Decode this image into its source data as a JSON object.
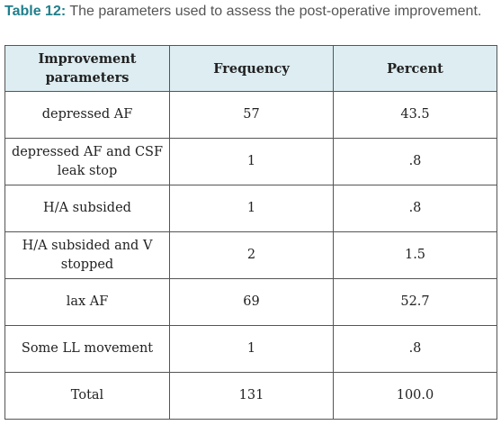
{
  "caption": {
    "label": "Table 12:",
    "text": " The parameters used to assess the post-operative improvement."
  },
  "table": {
    "headers": [
      "Improvement parameters",
      "Frequency",
      "Percent"
    ],
    "rows": [
      [
        "depressed AF",
        "57",
        "43.5"
      ],
      [
        "depressed AF and CSF leak stop",
        "1",
        ".8"
      ],
      [
        "H/A subsided",
        "1",
        ".8"
      ],
      [
        "H/A subsided and V stopped",
        "2",
        "1.5"
      ],
      [
        "lax AF",
        "69",
        "52.7"
      ],
      [
        "Some LL movement",
        "1",
        ".8"
      ],
      [
        "Total",
        "131",
        "100.0"
      ]
    ]
  },
  "colors": {
    "caption_label": "#1f7f8c",
    "header_bg": "#ddedf2",
    "border": "#555555"
  }
}
